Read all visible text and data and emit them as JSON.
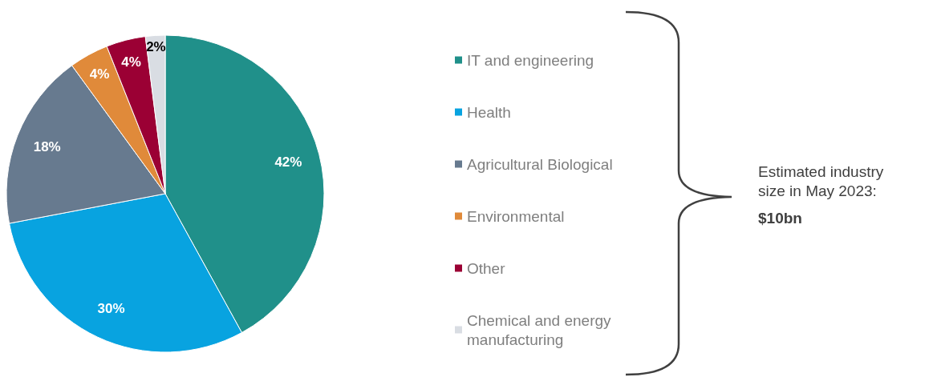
{
  "chart_data": {
    "type": "pie",
    "categories": [
      "IT and engineering",
      "Health",
      "Agricultural Biological",
      "Environmental",
      "Other",
      "Chemical and energy manufacturing"
    ],
    "values": [
      42,
      30,
      18,
      4,
      4,
      2
    ],
    "colors": [
      "#20908a",
      "#08a3e0",
      "#677a8f",
      "#e08a3a",
      "#9b0034",
      "#d9dde3"
    ],
    "value_labels": [
      "42%",
      "30%",
      "18%",
      "4%",
      "4%",
      "2%"
    ],
    "legend": "right",
    "annotations": [
      "Estimated industry size in May 2023:",
      "$10bn"
    ]
  }
}
